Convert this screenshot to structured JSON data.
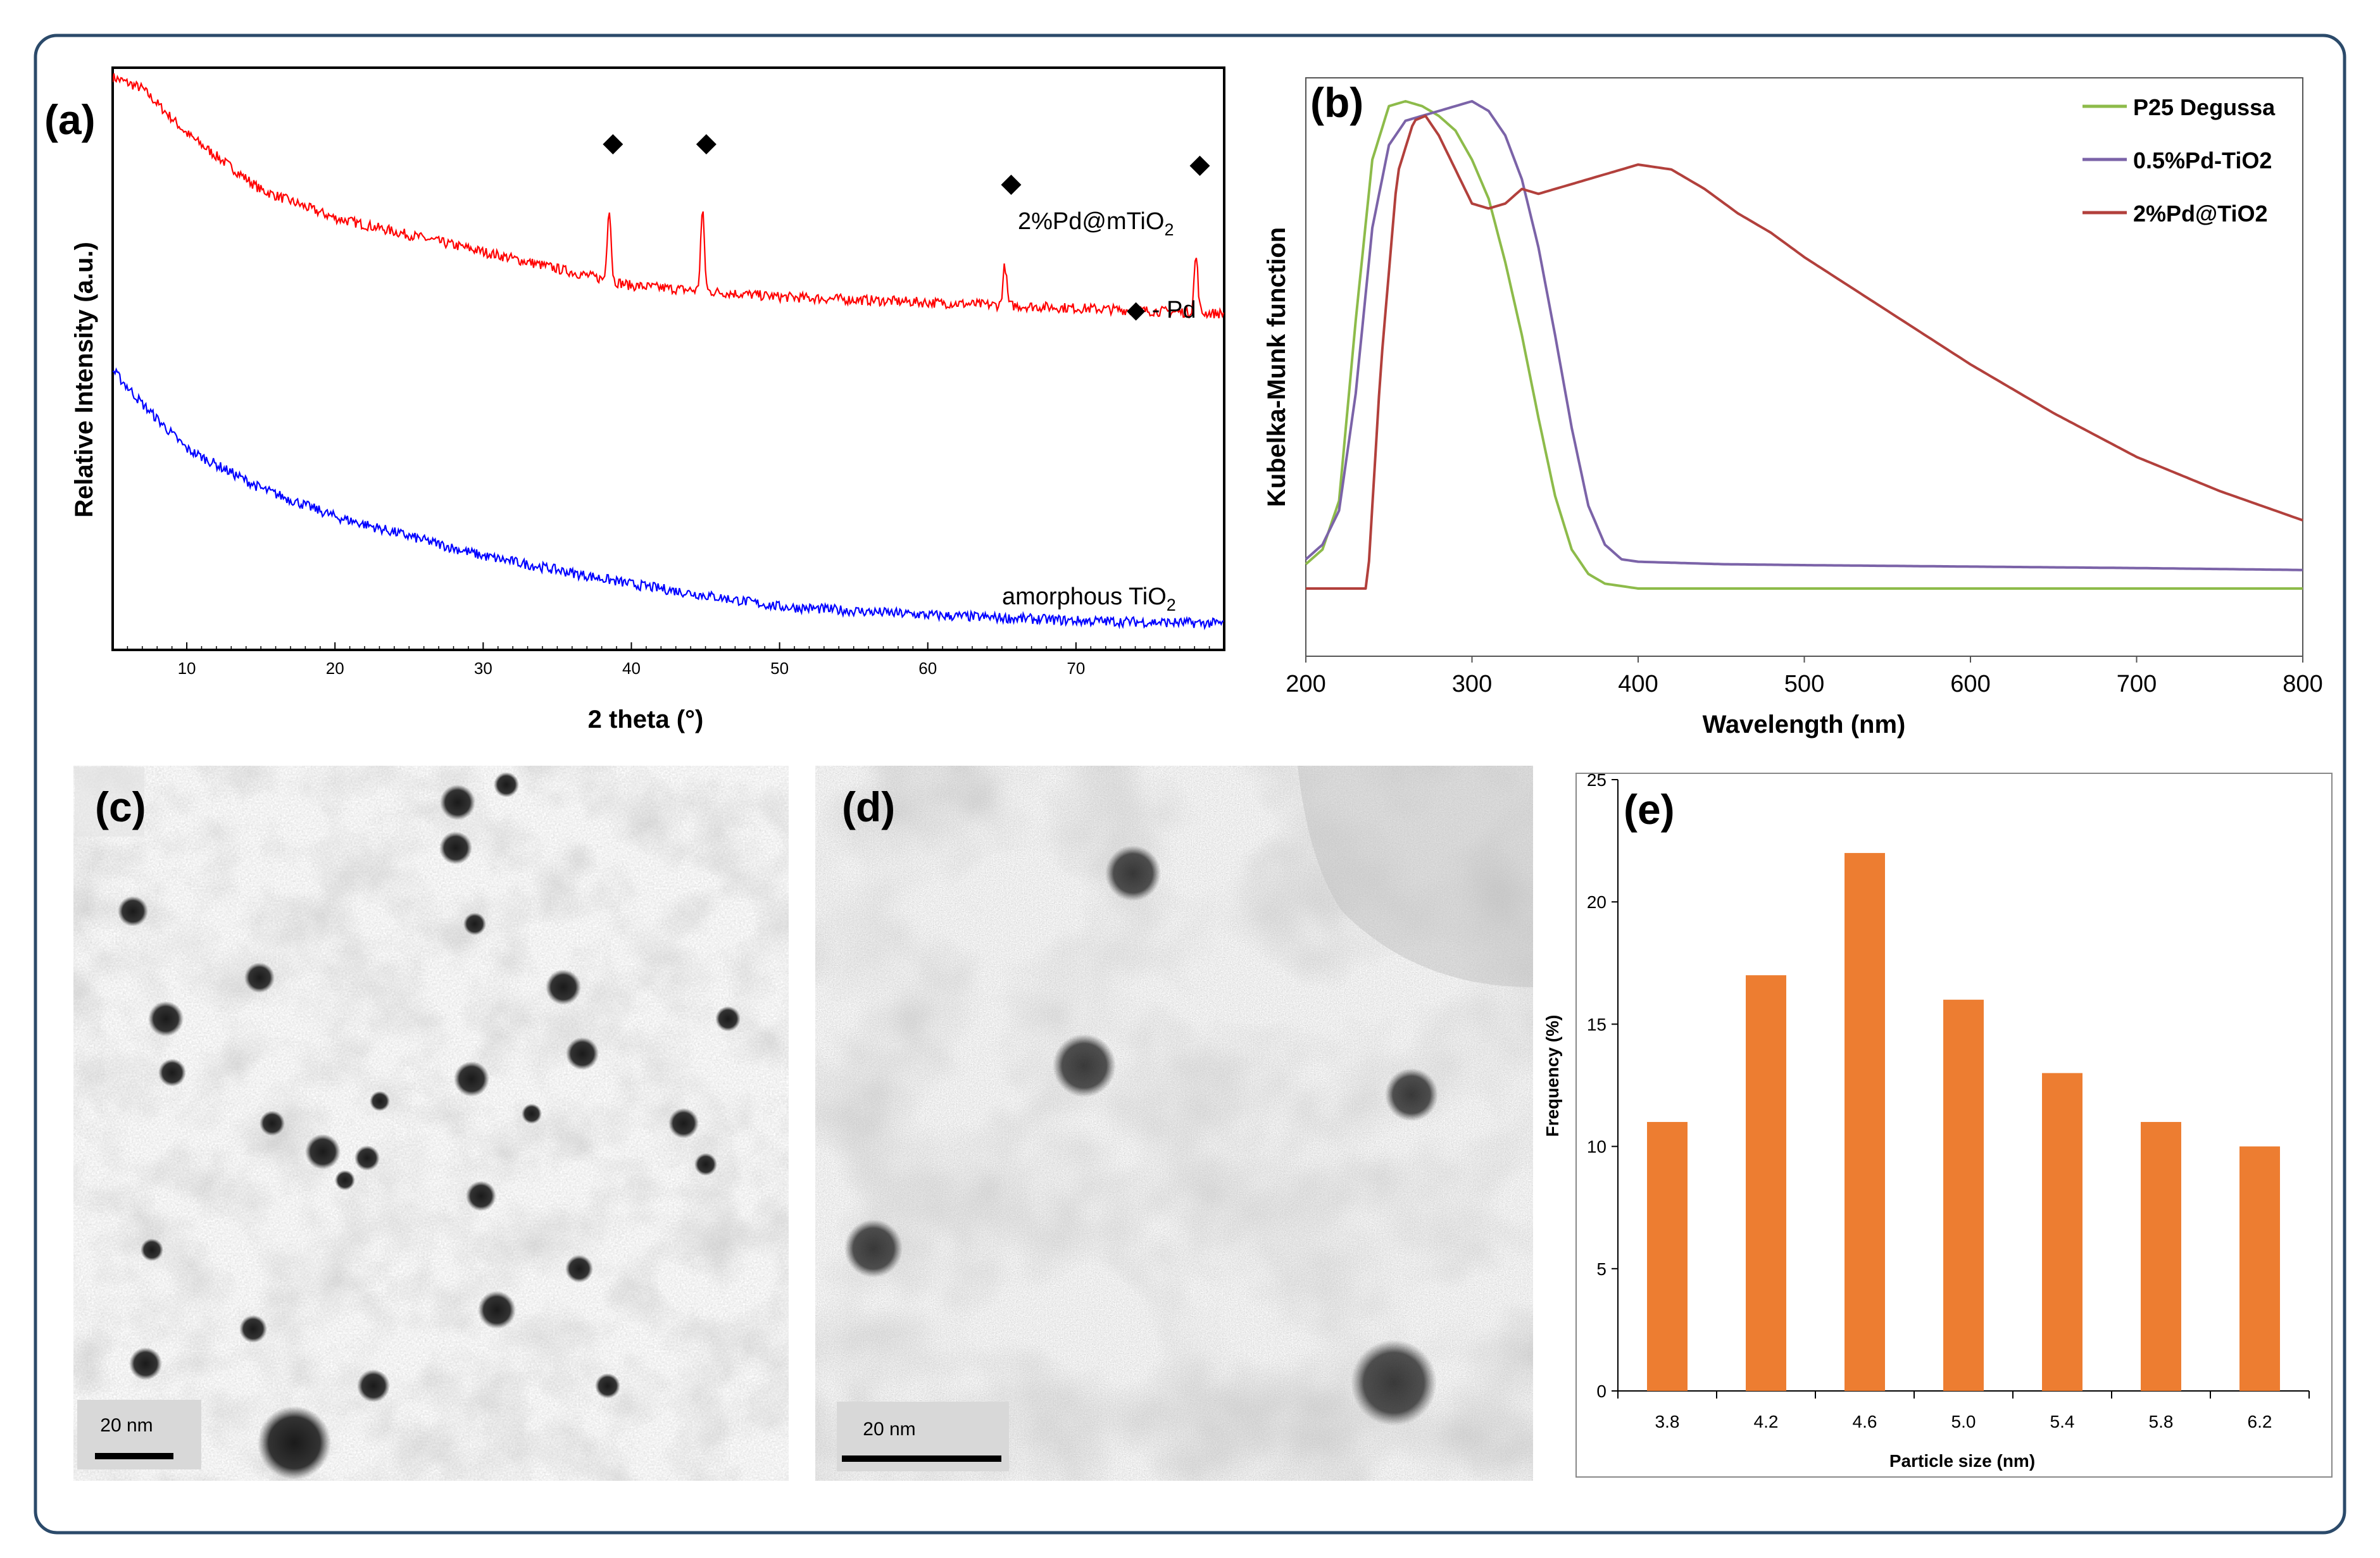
{
  "colors": {
    "frame": "#2b4a6a",
    "xrd_pd": "#ff0000",
    "xrd_tio2": "#0000ff",
    "p25": "#8dbb4a",
    "pd05": "#7b63a8",
    "pd2": "#b2403c",
    "bar": "#ed7d31",
    "tem_dark": "#2a2a2a",
    "tem_light": "#c9c9c9"
  },
  "chart_data": [
    {
      "panel": "(a)",
      "type": "line",
      "title": "",
      "xlabel": "2 theta (°)",
      "ylabel": "Relative Intensity (a.u.)",
      "xlim": [
        5,
        80
      ],
      "x_ticks": [
        "10",
        "20",
        "30",
        "40",
        "50",
        "60",
        "70"
      ],
      "series": [
        {
          "name": "2%Pd@mTiO2",
          "label_main": "2%Pd@mTiO",
          "label_sub": "2",
          "color": "#ff0000",
          "baseline": {
            "x": [
              5,
              7,
              10,
              15,
              20,
              30,
              40,
              50,
              60,
              70,
              80
            ],
            "y": [
              1.0,
              0.98,
              0.9,
              0.8,
              0.75,
              0.69,
              0.63,
              0.61,
              0.6,
              0.59,
              0.58
            ]
          },
          "peaks": [
            {
              "x": 38.5,
              "h": 0.13
            },
            {
              "x": 44.8,
              "h": 0.14
            },
            {
              "x": 65.2,
              "h": 0.07
            },
            {
              "x": 78.1,
              "h": 0.1
            }
          ]
        },
        {
          "name": "amorphous TiO2",
          "label_main": "amorphous TiO",
          "label_sub": "2",
          "color": "#0000ff",
          "baseline": {
            "x": [
              5,
              7,
              10,
              15,
              20,
              30,
              40,
              50,
              60,
              70,
              80
            ],
            "y": [
              0.48,
              0.42,
              0.34,
              0.27,
              0.22,
              0.15,
              0.1,
              0.06,
              0.045,
              0.035,
              0.03
            ]
          },
          "peaks": []
        }
      ],
      "markers": {
        "symbol": "◆",
        "x": [
          38.5,
          44.8,
          65.2,
          78.1
        ],
        "legend": "◆ - Pd"
      }
    },
    {
      "panel": "(b)",
      "type": "line",
      "xlabel": "Wavelength (nm)",
      "ylabel": "Kubelka-Munk function",
      "xlim": [
        200,
        800
      ],
      "x_ticks": [
        "200",
        "300",
        "400",
        "500",
        "600",
        "700",
        "800"
      ],
      "series": [
        {
          "name": "P25 Degussa",
          "color": "#8dbb4a",
          "x": [
            200,
            210,
            220,
            230,
            240,
            250,
            260,
            270,
            280,
            290,
            300,
            310,
            320,
            330,
            340,
            350,
            360,
            370,
            380,
            390,
            400,
            450,
            500,
            600,
            700,
            800
          ],
          "y": [
            0.05,
            0.08,
            0.18,
            0.55,
            0.88,
            0.99,
            1.0,
            0.99,
            0.97,
            0.94,
            0.88,
            0.8,
            0.67,
            0.52,
            0.35,
            0.19,
            0.08,
            0.03,
            0.01,
            0.005,
            0.0,
            0.0,
            0.0,
            0.0,
            0.0,
            0.0
          ]
        },
        {
          "name": "0.5%Pd-TiO2",
          "color": "#7b63a8",
          "x": [
            200,
            210,
            220,
            230,
            240,
            250,
            260,
            270,
            280,
            290,
            300,
            310,
            320,
            330,
            340,
            350,
            360,
            370,
            380,
            390,
            400,
            450,
            500,
            600,
            700,
            800
          ],
          "y": [
            0.06,
            0.09,
            0.16,
            0.4,
            0.74,
            0.91,
            0.96,
            0.97,
            0.98,
            0.99,
            1.0,
            0.98,
            0.93,
            0.84,
            0.7,
            0.52,
            0.33,
            0.17,
            0.09,
            0.06,
            0.055,
            0.05,
            0.048,
            0.045,
            0.042,
            0.038
          ]
        },
        {
          "name": "2%Pd@TiO2",
          "color": "#b2403c",
          "x": [
            200,
            230,
            237,
            245,
            255,
            265,
            272,
            280,
            290,
            300,
            310,
            320,
            330,
            340,
            360,
            380,
            400,
            420,
            440,
            460,
            480,
            500,
            550,
            600,
            650,
            700,
            750,
            800
          ],
          "y": [
            0.0,
            0.0,
            0.0,
            0.45,
            0.85,
            0.96,
            0.97,
            0.93,
            0.86,
            0.79,
            0.78,
            0.79,
            0.82,
            0.81,
            0.83,
            0.85,
            0.87,
            0.86,
            0.82,
            0.77,
            0.73,
            0.68,
            0.57,
            0.46,
            0.36,
            0.27,
            0.2,
            0.14
          ]
        }
      ]
    },
    {
      "panel": "(e)",
      "type": "bar",
      "xlabel": "Particle size (nm)",
      "ylabel": "Frequency (%)",
      "categories": [
        "3.8",
        "4.2",
        "4.6",
        "5.0",
        "5.4",
        "5.8",
        "6.2"
      ],
      "values": [
        11,
        17,
        22,
        16,
        13,
        11,
        10
      ],
      "ylim": [
        0,
        25
      ],
      "y_ticks": [
        "0",
        "5",
        "10",
        "15",
        "20",
        "25"
      ]
    }
  ],
  "images": {
    "c": {
      "panel": "(c)",
      "scale_bar": "20 nm"
    },
    "d": {
      "panel": "(d)",
      "scale_bar": "20 nm"
    }
  }
}
